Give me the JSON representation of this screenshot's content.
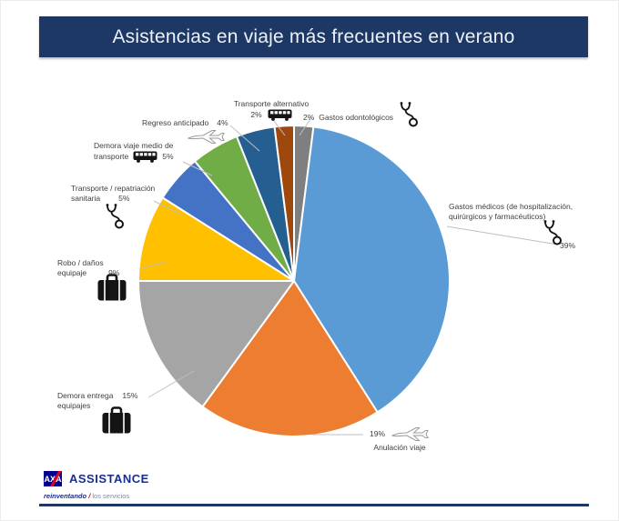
{
  "title": "Asistencias en viaje más frecuentes en verano",
  "chart_data": {
    "type": "pie",
    "title": "Asistencias en viaje más frecuentes en verano",
    "direction": "clockwise",
    "start_angle_deg": 0,
    "legend_position": "callout-labels",
    "slices": [
      {
        "label": "Gastos odontológicos",
        "value": 2,
        "pct_label": "2%",
        "color": "#7F7F7F",
        "icon": "stethoscope-icon"
      },
      {
        "label": "Gastos médicos (de hospitalización, quirúrgicos y farmacéuticos)",
        "value": 39,
        "pct_label": "39%",
        "color": "#5B9BD5",
        "icon": "stethoscope-icon"
      },
      {
        "label": "Anulación viaje",
        "value": 19,
        "pct_label": "19%",
        "color": "#ED7D31",
        "icon": "plane-icon"
      },
      {
        "label": "Demora entrega equipajes",
        "value": 15,
        "pct_label": "15%",
        "color": "#A5A5A5",
        "icon": "suitcase-icon"
      },
      {
        "label": "Robo / daños equipaje",
        "value": 9,
        "pct_label": "9%",
        "color": "#FFC000",
        "icon": "suitcase-icon"
      },
      {
        "label": "Transporte / repatriación sanitaria",
        "value": 5,
        "pct_label": "5%",
        "color": "#4472C4",
        "icon": "stethoscope-icon"
      },
      {
        "label": "Demora viaje medio de transporte",
        "value": 5,
        "pct_label": "5%",
        "color": "#70AD47",
        "icon": "bus-icon"
      },
      {
        "label": "Regreso anticipado",
        "value": 4,
        "pct_label": "4%",
        "color": "#255E91",
        "icon": "plane-icon"
      },
      {
        "label": "Transporte alternativo",
        "value": 2,
        "pct_label": "2%",
        "color": "#9E480E",
        "icon": "bus-icon"
      }
    ]
  },
  "callouts": {
    "transporte_alternativo": {
      "line1": "Transporte alternativo",
      "pct": "2%"
    },
    "regreso_anticipado": {
      "label": "Regreso anticipado",
      "pct": "4%"
    },
    "gastos_odontologicos": {
      "pct": "2%",
      "label": "Gastos odontológicos"
    },
    "demora_viaje": {
      "line1": "Demora viaje medio de",
      "line2": "transporte",
      "pct": "5%"
    },
    "repatriacion": {
      "line1": "Transporte / repatriación",
      "line2": "sanitaria",
      "pct": "5%"
    },
    "robo": {
      "line1": "Robo / daños",
      "line2": "equipaje",
      "pct": "9%"
    },
    "demora_entrega": {
      "line1": "Demora entrega",
      "line2": "equipajes",
      "pct": "15%"
    },
    "anulacion": {
      "pct": "19%",
      "label": "Anulación viaje"
    },
    "gastos_medicos": {
      "line1": "Gastos médicos (de hospitalización,",
      "line2": "quirúrgicos y farmacéuticos)",
      "pct": "39%"
    }
  },
  "footer": {
    "logo": "AXA",
    "brand": "ASSISTANCE",
    "tagline_bold": "reinventando",
    "tagline_slash": "/",
    "tagline_rest": "los servicios"
  },
  "colors": {
    "banner_bg": "#1E3865",
    "banner_text": "#EAF1FB",
    "leader_line": "#BFBFBF",
    "label_text": "#404040",
    "axa_blue": "#00008F",
    "axa_red": "#E3001B"
  }
}
